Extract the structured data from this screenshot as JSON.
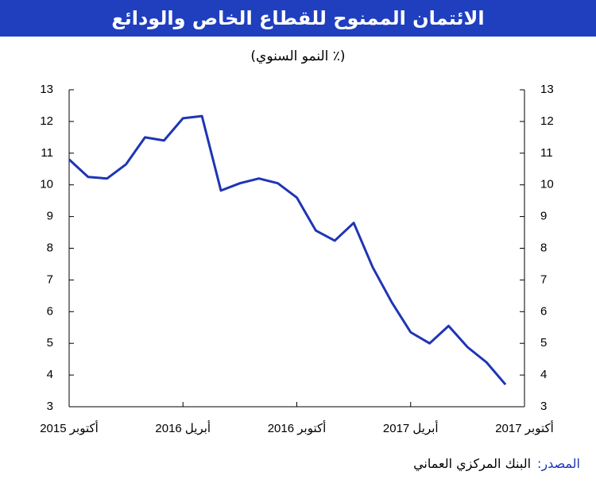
{
  "chart_data": {
    "type": "line",
    "title": "الائتمان الممنوح للقطاع الخاص والودائع",
    "subtitle": "(٪ النمو السنوي)",
    "categories": [
      "أكتوبر 2015",
      null,
      null,
      null,
      null,
      null,
      "أبريل 2016",
      null,
      null,
      null,
      null,
      null,
      "أكتوبر 2016",
      null,
      null,
      null,
      null,
      null,
      "أبريل 2017",
      null,
      null,
      null,
      null,
      null,
      "أكتوبر 2017"
    ],
    "series": [
      {
        "color": "#1f35b5",
        "values": [
          10.8,
          10.25,
          10.2,
          10.65,
          11.5,
          11.4,
          12.1,
          12.17,
          9.82,
          10.05,
          10.2,
          10.05,
          9.6,
          8.56,
          8.24,
          8.8,
          7.4,
          6.3,
          5.35,
          5.0,
          5.55,
          4.88,
          4.4,
          3.7,
          null
        ]
      }
    ],
    "ylim": [
      3,
      13
    ],
    "yticks": [
      3,
      4,
      5,
      6,
      7,
      8,
      9,
      10,
      11,
      12,
      13
    ],
    "y2lim": [
      3,
      13
    ],
    "y2ticks": [
      3,
      4,
      5,
      6,
      7,
      8,
      9,
      10,
      11,
      12,
      13
    ],
    "title_color": "#1f3fbf"
  },
  "source": {
    "label": "المصدر:",
    "text": "البنك المركزي العماني"
  }
}
